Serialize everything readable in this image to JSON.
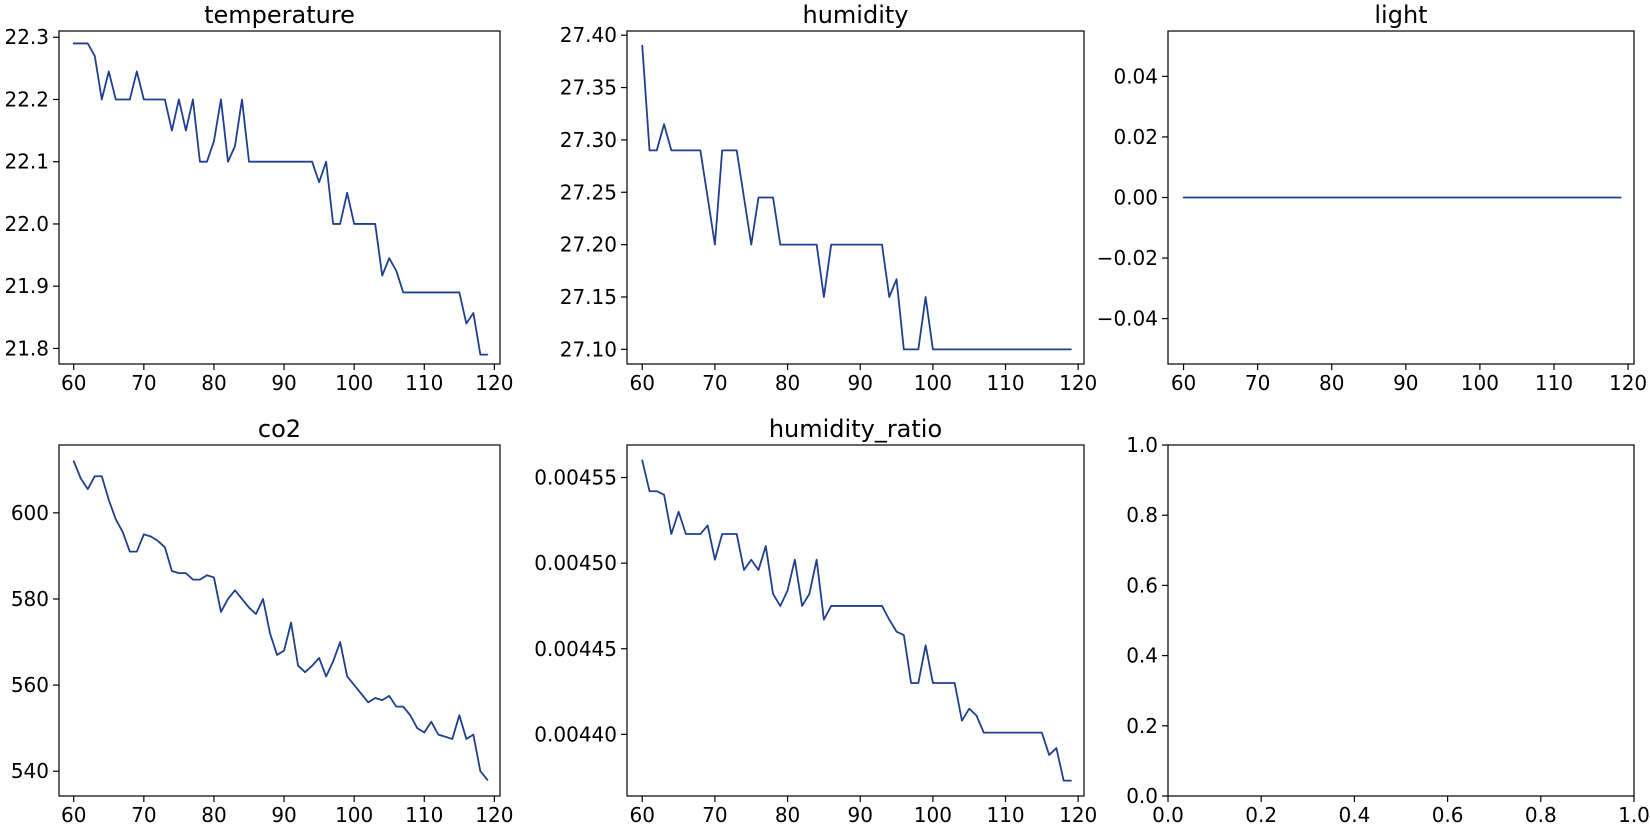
{
  "chart_data": [
    {
      "type": "line",
      "title": "temperature",
      "xlabel": "",
      "ylabel": "",
      "xlim": [
        57.9,
        120.8
      ],
      "ylim": [
        21.775,
        22.31
      ],
      "xticks": [
        "60",
        "70",
        "80",
        "90",
        "100",
        "110",
        "120"
      ],
      "yticks": [
        "21.8",
        "21.9",
        "22.0",
        "22.1",
        "22.2",
        "22.3"
      ],
      "grid": false,
      "series": [
        {
          "color": "#1f3f8f",
          "x": [
            60,
            61,
            62,
            63,
            64,
            65,
            66,
            67,
            68,
            69,
            70,
            71,
            72,
            73,
            74,
            75,
            76,
            77,
            78,
            79,
            80,
            81,
            82,
            83,
            84,
            85,
            86,
            87,
            88,
            89,
            90,
            91,
            92,
            93,
            94,
            95,
            96,
            97,
            98,
            99,
            100,
            101,
            102,
            103,
            104,
            105,
            106,
            107,
            108,
            109,
            110,
            111,
            112,
            113,
            114,
            115,
            116,
            117,
            118,
            119
          ],
          "y": [
            22.29,
            22.29,
            22.29,
            22.27,
            22.2,
            22.245,
            22.2,
            22.2,
            22.2,
            22.245,
            22.2,
            22.2,
            22.2,
            22.2,
            22.15,
            22.2,
            22.15,
            22.2,
            22.1,
            22.1,
            22.133,
            22.2,
            22.1,
            22.125,
            22.2,
            22.1,
            22.1,
            22.1,
            22.1,
            22.1,
            22.1,
            22.1,
            22.1,
            22.1,
            22.1,
            22.067,
            22.1,
            22.0,
            22.0,
            22.05,
            22.0,
            22.0,
            22.0,
            22.0,
            21.917,
            21.945,
            21.925,
            21.89,
            21.89,
            21.89,
            21.89,
            21.89,
            21.89,
            21.89,
            21.89,
            21.89,
            21.84,
            21.857,
            21.79,
            21.79
          ]
        }
      ]
    },
    {
      "type": "line",
      "title": "humidity",
      "xlabel": "",
      "ylabel": "",
      "xlim": [
        57.9,
        120.8
      ],
      "ylim": [
        27.086,
        27.404
      ],
      "xticks": [
        "60",
        "70",
        "80",
        "90",
        "100",
        "110",
        "120"
      ],
      "yticks": [
        "27.10",
        "27.15",
        "27.20",
        "27.25",
        "27.30",
        "27.35",
        "27.40"
      ],
      "grid": false,
      "series": [
        {
          "color": "#1f3f8f",
          "x": [
            60,
            61,
            62,
            63,
            64,
            65,
            66,
            67,
            68,
            69,
            70,
            71,
            72,
            73,
            74,
            75,
            76,
            77,
            78,
            79,
            80,
            81,
            82,
            83,
            84,
            85,
            86,
            87,
            88,
            89,
            90,
            91,
            92,
            93,
            94,
            95,
            96,
            97,
            98,
            99,
            100,
            101,
            102,
            103,
            104,
            105,
            106,
            107,
            108,
            109,
            110,
            111,
            112,
            113,
            114,
            115,
            116,
            117,
            118,
            119
          ],
          "y": [
            27.39,
            27.29,
            27.29,
            27.315,
            27.29,
            27.29,
            27.29,
            27.29,
            27.29,
            27.245,
            27.2,
            27.29,
            27.29,
            27.29,
            27.245,
            27.2,
            27.245,
            27.245,
            27.245,
            27.2,
            27.2,
            27.2,
            27.2,
            27.2,
            27.2,
            27.15,
            27.2,
            27.2,
            27.2,
            27.2,
            27.2,
            27.2,
            27.2,
            27.2,
            27.15,
            27.167,
            27.1,
            27.1,
            27.1,
            27.15,
            27.1,
            27.1,
            27.1,
            27.1,
            27.1,
            27.1,
            27.1,
            27.1,
            27.1,
            27.1,
            27.1,
            27.1,
            27.1,
            27.1,
            27.1,
            27.1,
            27.1,
            27.1,
            27.1,
            27.1
          ]
        }
      ]
    },
    {
      "type": "line",
      "title": "light",
      "xlabel": "",
      "ylabel": "",
      "xlim": [
        57.9,
        120.8
      ],
      "ylim": [
        -0.055,
        0.055
      ],
      "xticks": [
        "60",
        "70",
        "80",
        "90",
        "100",
        "110",
        "120"
      ],
      "yticks": [
        "−0.04",
        "−0.02",
        "0.00",
        "0.02",
        "0.04"
      ],
      "grid": false,
      "series": [
        {
          "color": "#1f3f8f",
          "x": [
            60,
            119
          ],
          "y": [
            0,
            0
          ]
        }
      ]
    },
    {
      "type": "line",
      "title": "co2",
      "xlabel": "",
      "ylabel": "",
      "xlim": [
        57.9,
        120.8
      ],
      "ylim": [
        534.25,
        615.75
      ],
      "xticks": [
        "60",
        "70",
        "80",
        "90",
        "100",
        "110",
        "120"
      ],
      "yticks": [
        "540",
        "560",
        "580",
        "600"
      ],
      "grid": false,
      "series": [
        {
          "color": "#1f3f8f",
          "x": [
            60,
            61,
            62,
            63,
            64,
            65,
            66,
            67,
            68,
            69,
            70,
            71,
            72,
            73,
            74,
            75,
            76,
            77,
            78,
            79,
            80,
            81,
            82,
            83,
            84,
            85,
            86,
            87,
            88,
            89,
            90,
            91,
            92,
            93,
            94,
            95,
            96,
            97,
            98,
            99,
            100,
            101,
            102,
            103,
            104,
            105,
            106,
            107,
            108,
            109,
            110,
            111,
            112,
            113,
            114,
            115,
            116,
            117,
            118,
            119
          ],
          "y": [
            612,
            608,
            605.5,
            608.5,
            608.5,
            603,
            598.5,
            595.5,
            591,
            591,
            595,
            594.5,
            593.5,
            592,
            586.5,
            586,
            586,
            584.5,
            584.5,
            585.5,
            585,
            577,
            580,
            582,
            580,
            578,
            576.5,
            580,
            572,
            567,
            568,
            574.5,
            564.5,
            563,
            564.5,
            566.3,
            562,
            565.5,
            570,
            562,
            560,
            558,
            556,
            557,
            556.5,
            557.5,
            555,
            555,
            553,
            550,
            549,
            551.5,
            548.5,
            548,
            547.5,
            553,
            547.5,
            548.5,
            540,
            538
          ]
        }
      ]
    },
    {
      "type": "line",
      "title": "humidity_ratio",
      "xlabel": "",
      "ylabel": "",
      "xlim": [
        57.9,
        120.8
      ],
      "ylim": [
        0.004364,
        0.004569
      ],
      "xticks": [
        "60",
        "70",
        "80",
        "90",
        "100",
        "110",
        "120"
      ],
      "yticks": [
        "0.00440",
        "0.00445",
        "0.00450",
        "0.00455"
      ],
      "grid": false,
      "series": [
        {
          "color": "#1f3f8f",
          "x": [
            60,
            61,
            62,
            63,
            64,
            65,
            66,
            67,
            68,
            69,
            70,
            71,
            72,
            73,
            74,
            75,
            76,
            77,
            78,
            79,
            80,
            81,
            82,
            83,
            84,
            85,
            86,
            87,
            88,
            89,
            90,
            91,
            92,
            93,
            94,
            95,
            96,
            97,
            98,
            99,
            100,
            101,
            102,
            103,
            104,
            105,
            106,
            107,
            108,
            109,
            110,
            111,
            112,
            113,
            114,
            115,
            116,
            117,
            118,
            119
          ],
          "y": [
            0.00456,
            0.004542,
            0.004542,
            0.00454,
            0.004517,
            0.00453,
            0.004517,
            0.004517,
            0.004517,
            0.004522,
            0.004502,
            0.004517,
            0.004517,
            0.004517,
            0.004496,
            0.004502,
            0.004496,
            0.00451,
            0.004482,
            0.004475,
            0.004484,
            0.004502,
            0.004475,
            0.004482,
            0.004502,
            0.004467,
            0.004475,
            0.004475,
            0.004475,
            0.004475,
            0.004475,
            0.004475,
            0.004475,
            0.004475,
            0.004467,
            0.00446,
            0.004458,
            0.00443,
            0.00443,
            0.004452,
            0.00443,
            0.00443,
            0.00443,
            0.00443,
            0.004408,
            0.004415,
            0.004411,
            0.004401,
            0.004401,
            0.004401,
            0.004401,
            0.004401,
            0.004401,
            0.004401,
            0.004401,
            0.004401,
            0.004388,
            0.004392,
            0.004373,
            0.004373
          ]
        }
      ]
    },
    {
      "type": "line",
      "title": "",
      "xlabel": "",
      "ylabel": "",
      "xlim": [
        0,
        1
      ],
      "ylim": [
        0,
        1
      ],
      "xticks": [
        "0.0",
        "0.2",
        "0.4",
        "0.6",
        "0.8",
        "1.0"
      ],
      "yticks": [
        "0.0",
        "0.2",
        "0.4",
        "0.6",
        "0.8",
        "1.0"
      ],
      "grid": false,
      "series": []
    }
  ]
}
